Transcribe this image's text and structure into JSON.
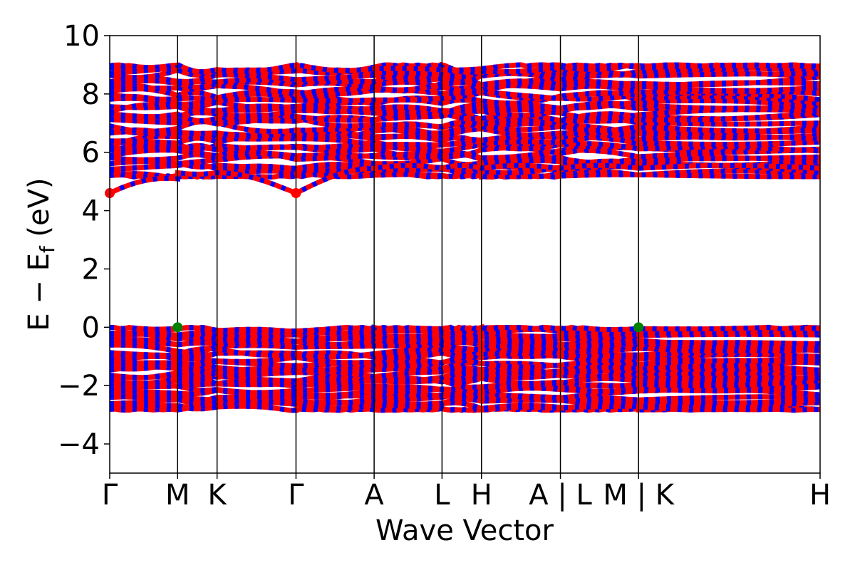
{
  "chart_data": {
    "type": "line",
    "title": "",
    "xlabel": "Wave Vector",
    "ylabel": {
      "main": "E − E",
      "sub": "f",
      "unit": " (eV)"
    },
    "ylim": [
      -5,
      10
    ],
    "yticks": [
      {
        "value": -4,
        "label": "−4"
      },
      {
        "value": -2,
        "label": "−2"
      },
      {
        "value": 0,
        "label": "0"
      },
      {
        "value": 2,
        "label": "2"
      },
      {
        "value": 4,
        "label": "4"
      },
      {
        "value": 6,
        "label": "6"
      },
      {
        "value": 8,
        "label": "8"
      },
      {
        "value": 10,
        "label": "10"
      }
    ],
    "xlim": [
      0,
      9.0
    ],
    "kpoints": [
      {
        "x": 0.0,
        "label": "Γ"
      },
      {
        "x": 0.86,
        "label": "M"
      },
      {
        "x": 1.36,
        "label": "K"
      },
      {
        "x": 2.36,
        "label": "Γ"
      },
      {
        "x": 3.35,
        "label": "A"
      },
      {
        "x": 4.21,
        "label": "L"
      },
      {
        "x": 4.71,
        "label": "H"
      },
      {
        "x": 5.71,
        "label": "A | L"
      },
      {
        "x": 6.7,
        "label": "M | K"
      },
      {
        "x": 9.0,
        "label": "H"
      }
    ],
    "grid": false,
    "series_colors": {
      "spin_up": "#ff0000",
      "spin_down": "#0000ff"
    },
    "band_groups": [
      {
        "role": "conduction",
        "count": 36,
        "emin": 5.15,
        "emax": 9.0,
        "lowest_band": {
          "endpoints": 4.6,
          "mid_segment_max": 5.3
        }
      },
      {
        "role": "valence",
        "count": 32,
        "emin": -2.85,
        "emax": 0.0
      }
    ],
    "markers": [
      {
        "name": "CBM",
        "color": "#ff0000",
        "points": [
          {
            "x": 0.0,
            "y": 4.6
          },
          {
            "x": 2.36,
            "y": 4.6
          }
        ]
      },
      {
        "name": "VBM",
        "color": "#008000",
        "points": [
          {
            "x": 0.86,
            "y": 0.0
          },
          {
            "x": 6.7,
            "y": 0.0
          }
        ]
      }
    ]
  }
}
